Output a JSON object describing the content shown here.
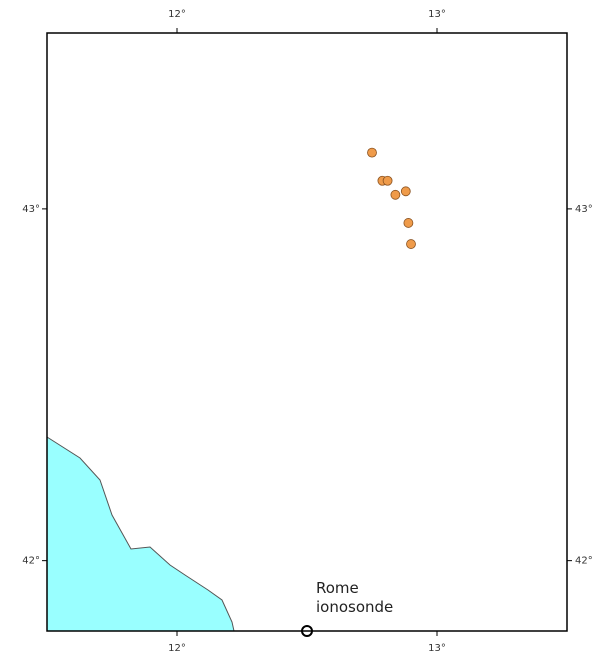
{
  "chart_data": {
    "type": "scatter",
    "x": [
      12.75,
      12.79,
      12.81,
      12.84,
      12.88,
      12.89,
      12.9
    ],
    "series": [
      {
        "color": "#ef9b4a",
        "values": [
          43.16,
          43.08,
          43.08,
          43.04,
          43.05,
          42.96,
          42.9
        ]
      }
    ],
    "xlim": [
      11.5,
      13.5
    ],
    "ylim": [
      41.8,
      43.5
    ],
    "xticks": [
      {
        "value": 12,
        "label": "12°"
      },
      {
        "value": 13,
        "label": "13°"
      }
    ],
    "yticks": [
      {
        "value": 42,
        "label": "42°"
      },
      {
        "value": 43,
        "label": "43°"
      }
    ],
    "stations": [
      {
        "name": "Rome ionosonde",
        "x": 12.5,
        "y": 41.8
      }
    ]
  }
}
